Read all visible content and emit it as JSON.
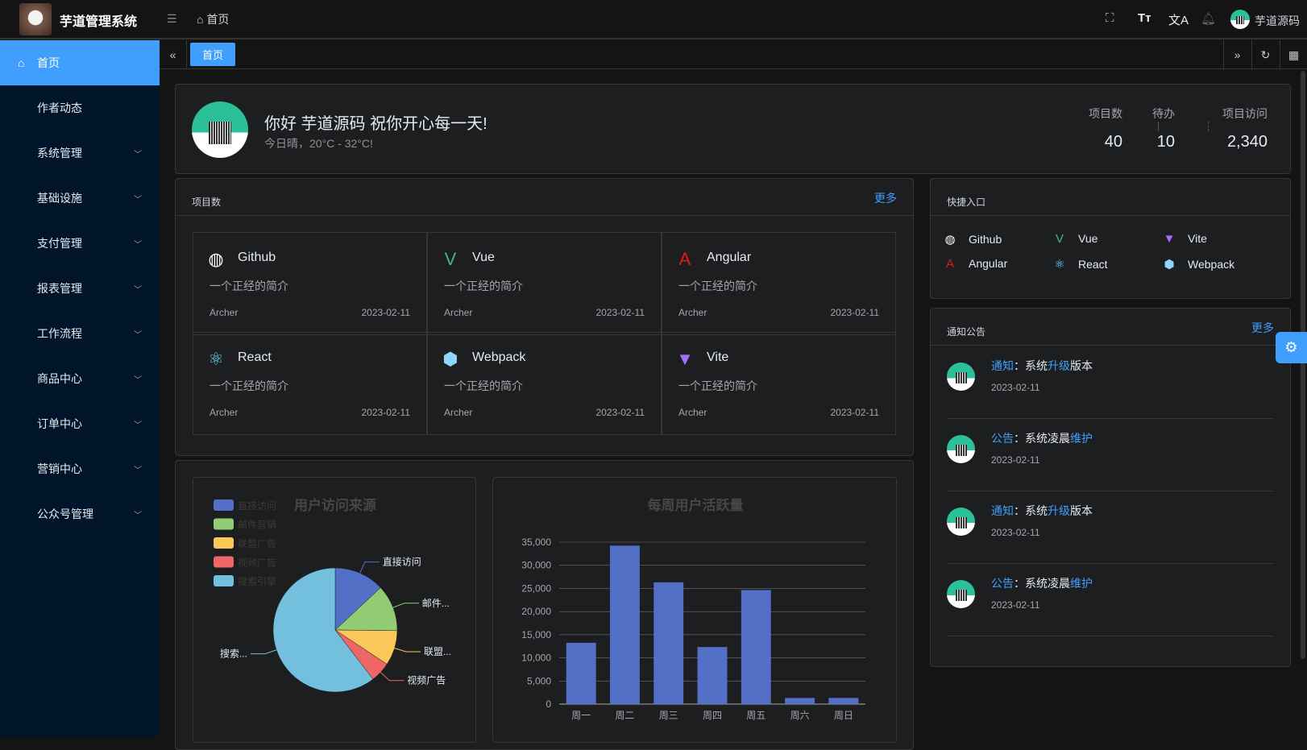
{
  "header": {
    "app_title": "芋道管理系统",
    "breadcrumb": "首页",
    "user_name": "芋道源码",
    "icons": [
      "fullscreen-icon",
      "font-size-icon",
      "translate-icon",
      "bell-icon"
    ]
  },
  "sidebar": {
    "items": [
      {
        "label": "首页",
        "active": true
      },
      {
        "label": "作者动态"
      },
      {
        "label": "系统管理",
        "expandable": true
      },
      {
        "label": "基础设施",
        "expandable": true
      },
      {
        "label": "支付管理",
        "expandable": true
      },
      {
        "label": "报表管理",
        "expandable": true
      },
      {
        "label": "工作流程",
        "expandable": true
      },
      {
        "label": "商品中心",
        "expandable": true
      },
      {
        "label": "订单中心",
        "expandable": true
      },
      {
        "label": "营销中心",
        "expandable": true
      },
      {
        "label": "公众号管理",
        "expandable": true
      }
    ]
  },
  "tabs": {
    "items": [
      "首页"
    ]
  },
  "welcome": {
    "greeting": "你好 芋道源码 祝你开心每一天!",
    "weather": "今日晴，20°C - 32°C!",
    "stats": [
      {
        "label": "项目数",
        "value": "40"
      },
      {
        "label": "待办",
        "value": "10"
      },
      {
        "label": "项目访问",
        "value": "2,340"
      }
    ]
  },
  "projects": {
    "title": "项目数",
    "more": "更多",
    "items": [
      {
        "name": "Github",
        "icon": "github-icon",
        "color": "#ffffff",
        "desc": "一个正经的简介",
        "author": "Archer",
        "date": "2023-02-11"
      },
      {
        "name": "Vue",
        "icon": "vue-icon",
        "color": "#42b883",
        "desc": "一个正经的简介",
        "author": "Archer",
        "date": "2023-02-11"
      },
      {
        "name": "Angular",
        "icon": "angular-icon",
        "color": "#dd1b16",
        "desc": "一个正经的简介",
        "author": "Archer",
        "date": "2023-02-11"
      },
      {
        "name": "React",
        "icon": "react-icon",
        "color": "#61dafb",
        "desc": "一个正经的简介",
        "author": "Archer",
        "date": "2023-02-11"
      },
      {
        "name": "Webpack",
        "icon": "webpack-icon",
        "color": "#8ed6fb",
        "desc": "一个正经的简介",
        "author": "Archer",
        "date": "2023-02-11"
      },
      {
        "name": "Vite",
        "icon": "vite-icon",
        "color": "#a56cff",
        "desc": "一个正经的简介",
        "author": "Archer",
        "date": "2023-02-11"
      }
    ]
  },
  "shortcuts": {
    "title": "快捷入口",
    "items": [
      {
        "name": "Github",
        "icon": "github-icon",
        "color": "#ffffff"
      },
      {
        "name": "Vue",
        "icon": "vue-icon",
        "color": "#42b883"
      },
      {
        "name": "Vite",
        "icon": "vite-icon",
        "color": "#a56cff"
      },
      {
        "name": "Angular",
        "icon": "angular-icon",
        "color": "#dd1b16"
      },
      {
        "name": "React",
        "icon": "react-icon",
        "color": "#61dafb"
      },
      {
        "name": "Webpack",
        "icon": "webpack-icon",
        "color": "#8ed6fb"
      }
    ]
  },
  "notices": {
    "title": "通知公告",
    "more": "更多",
    "items": [
      {
        "type": "通知",
        "pre": "系统",
        "hl": "升级",
        "post": "版本",
        "date": "2023-02-11"
      },
      {
        "type": "公告",
        "pre": "系统凌晨",
        "hl": "维护",
        "post": "",
        "date": "2023-02-11"
      },
      {
        "type": "通知",
        "pre": "系统",
        "hl": "升级",
        "post": "版本",
        "date": "2023-02-11"
      },
      {
        "type": "公告",
        "pre": "系统凌晨",
        "hl": "维护",
        "post": "",
        "date": "2023-02-11"
      }
    ]
  },
  "chart_data": [
    {
      "type": "pie",
      "title": "用户访问来源",
      "legend": "top-left",
      "labels": [
        "直接访问",
        "邮件营销",
        "联盟广告",
        "视频广告",
        "搜索引擎"
      ],
      "display_labels": [
        "直接访问",
        "邮件...",
        "联盟...",
        "视频广告",
        "搜索..."
      ],
      "values": [
        335,
        310,
        234,
        135,
        1548
      ],
      "colors": [
        "#5470c6",
        "#91cc75",
        "#fac858",
        "#ee6666",
        "#73c0de"
      ]
    },
    {
      "type": "bar",
      "title": "每周用户活跃量",
      "categories": [
        "周一",
        "周二",
        "周三",
        "周四",
        "周五",
        "周六",
        "周日"
      ],
      "values": [
        13253,
        34235,
        26321,
        12340,
        24643,
        1322,
        1324
      ],
      "ylim": [
        0,
        35000
      ],
      "yticks": [
        "0",
        "5,000",
        "10,000",
        "15,000",
        "20,000",
        "25,000",
        "30,000",
        "35,000"
      ],
      "color": "#5470c6",
      "grid": true
    }
  ]
}
